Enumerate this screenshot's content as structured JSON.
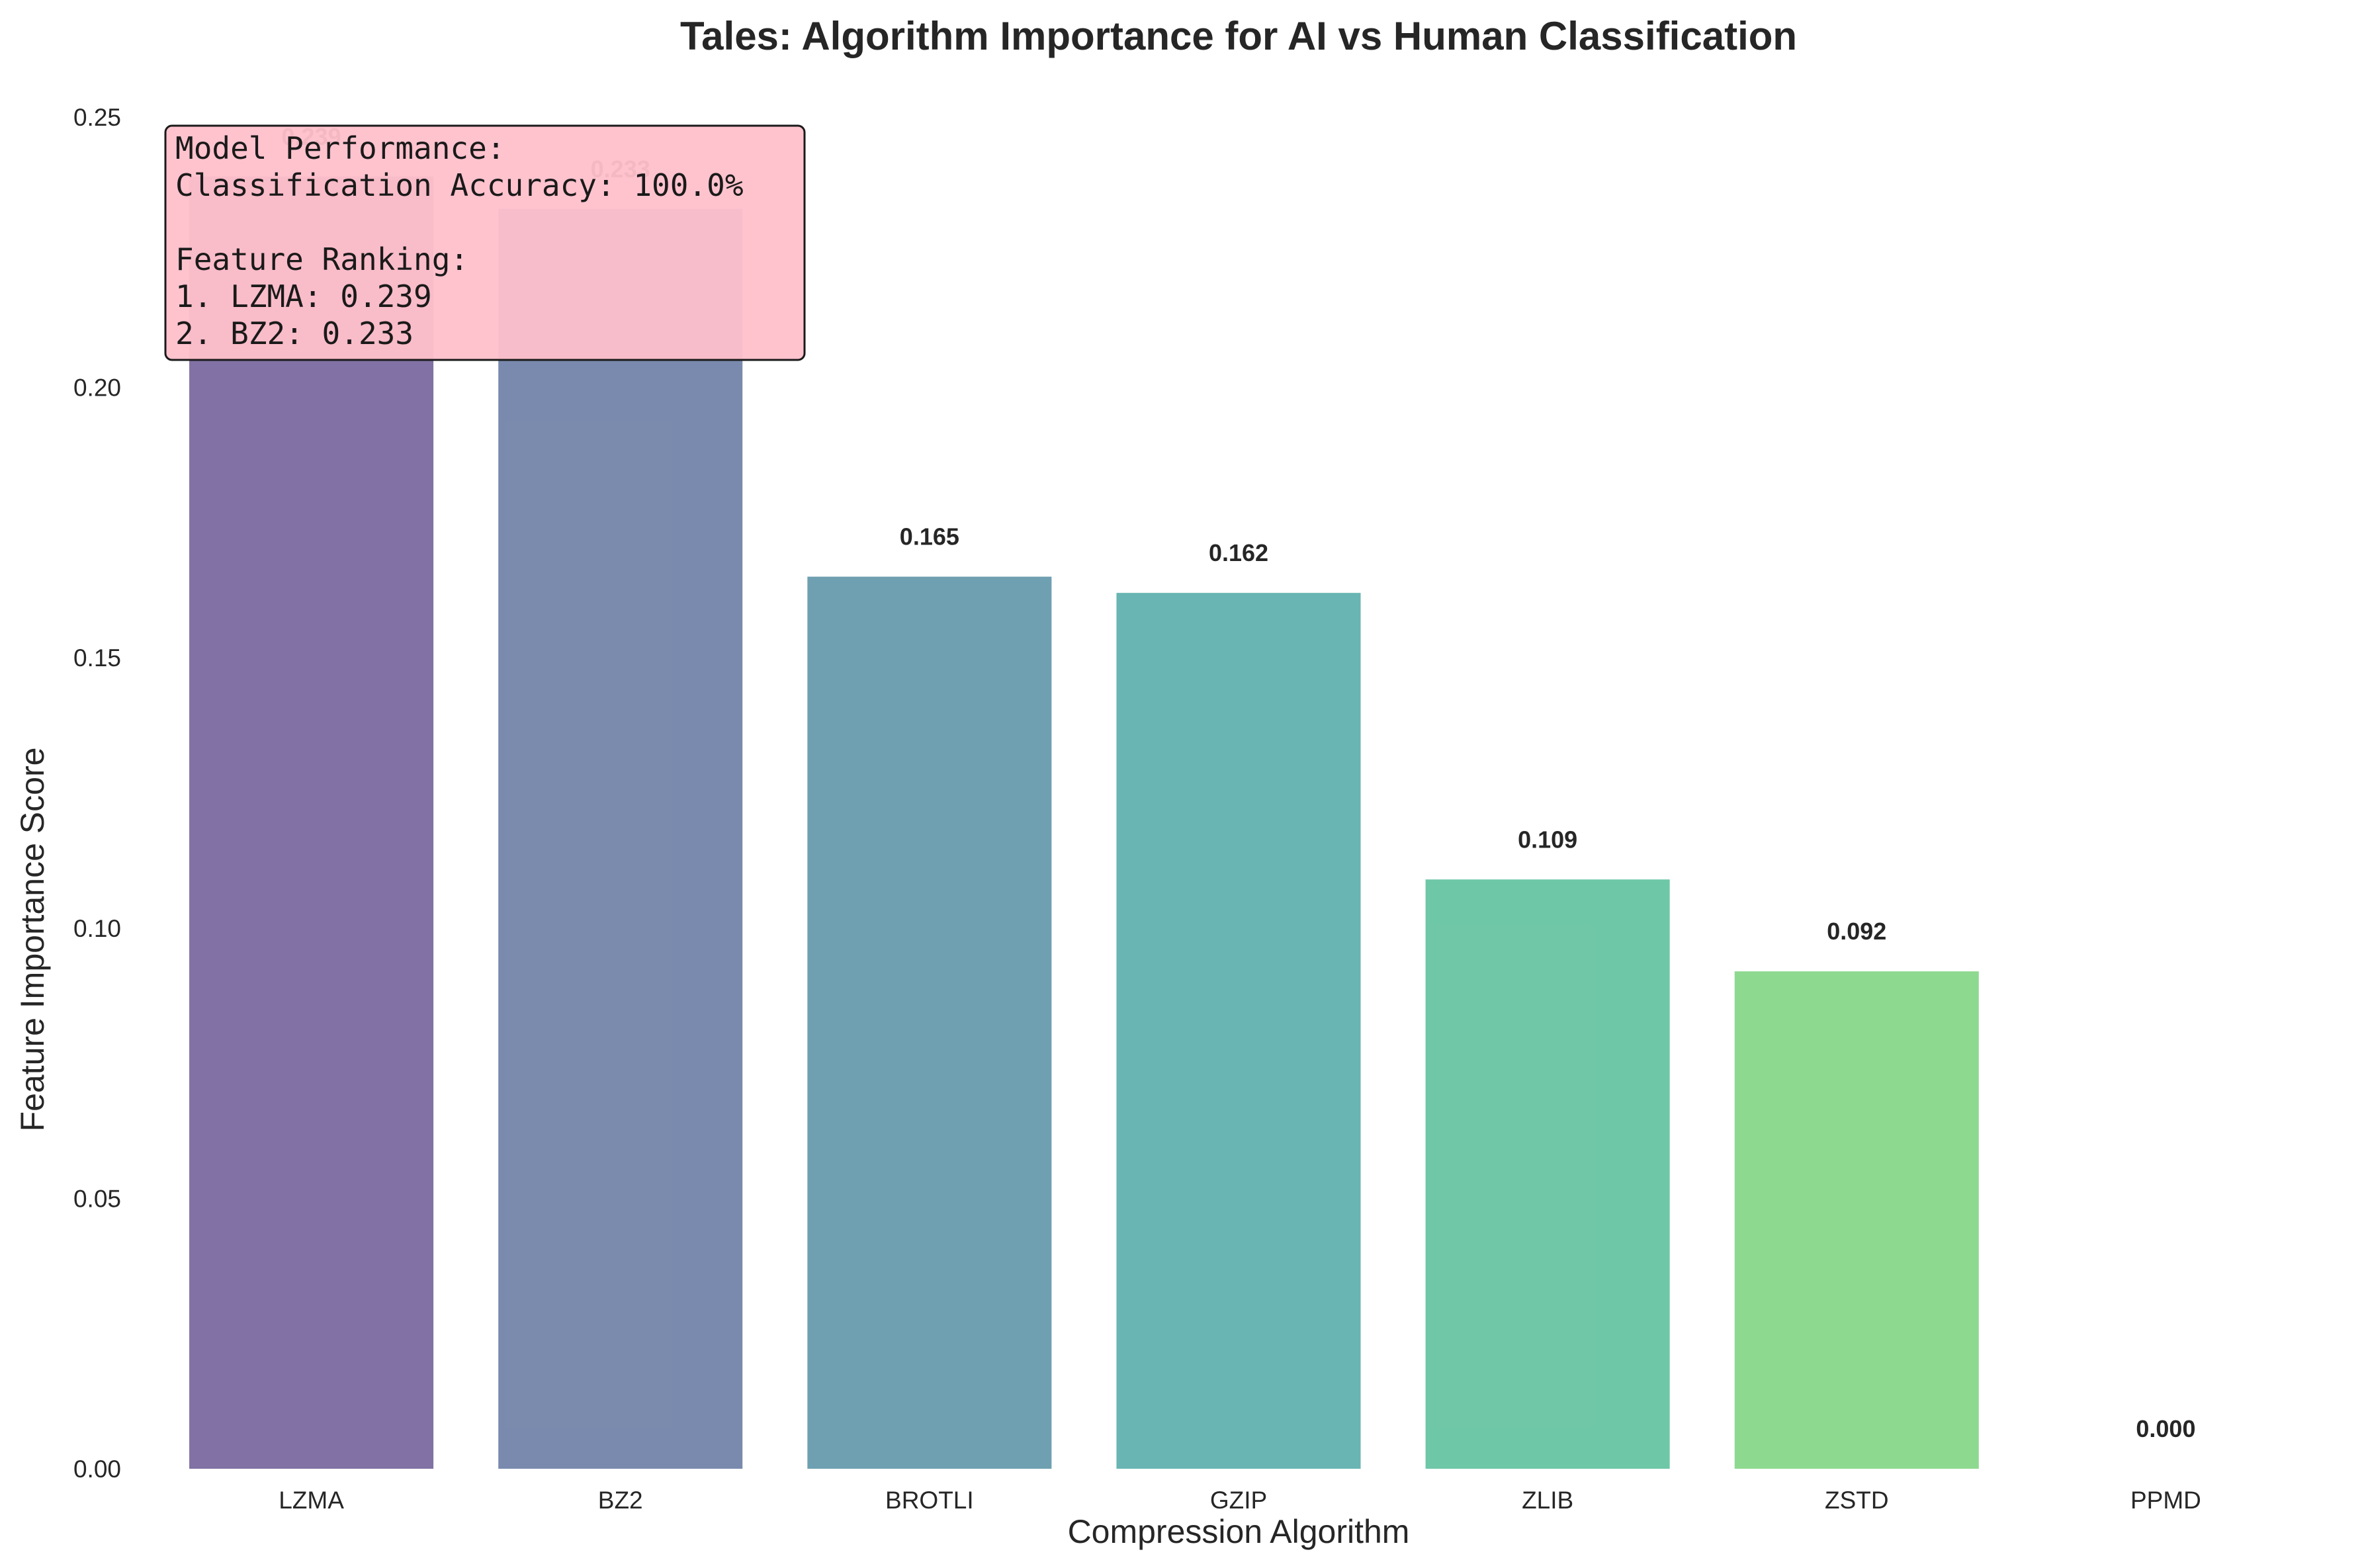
{
  "chart_data": {
    "type": "bar",
    "title": "Tales: Algorithm Importance for AI vs Human Classification",
    "xlabel": "Compression Algorithm",
    "ylabel": "Feature Importance Score",
    "categories": [
      "LZMA",
      "BZ2",
      "BROTLI",
      "GZIP",
      "ZLIB",
      "ZSTD",
      "PPMD"
    ],
    "values": [
      0.239,
      0.233,
      0.165,
      0.162,
      0.109,
      0.092,
      0.0
    ],
    "value_labels": [
      "0.239",
      "0.233",
      "0.165",
      "0.162",
      "0.109",
      "0.092",
      "0.000"
    ],
    "colors": [
      "#6b5894",
      "#6276a0",
      "#568fa3",
      "#4fa8a6",
      "#55bd98",
      "#7ad27c",
      "#b8de5a"
    ],
    "ylim": [
      0,
      0.25
    ],
    "yticks": [
      "0.00",
      "0.05",
      "0.10",
      "0.15",
      "0.20",
      "0.25"
    ],
    "grid": false,
    "legend": null,
    "annotation": {
      "lines": [
        "Model Performance:",
        "Classification Accuracy: 100.0%",
        "",
        "Feature Ranking:",
        "1. LZMA: 0.239",
        "2. BZ2: 0.233"
      ],
      "background": "#ffc0cb",
      "placement": "top-left"
    }
  }
}
